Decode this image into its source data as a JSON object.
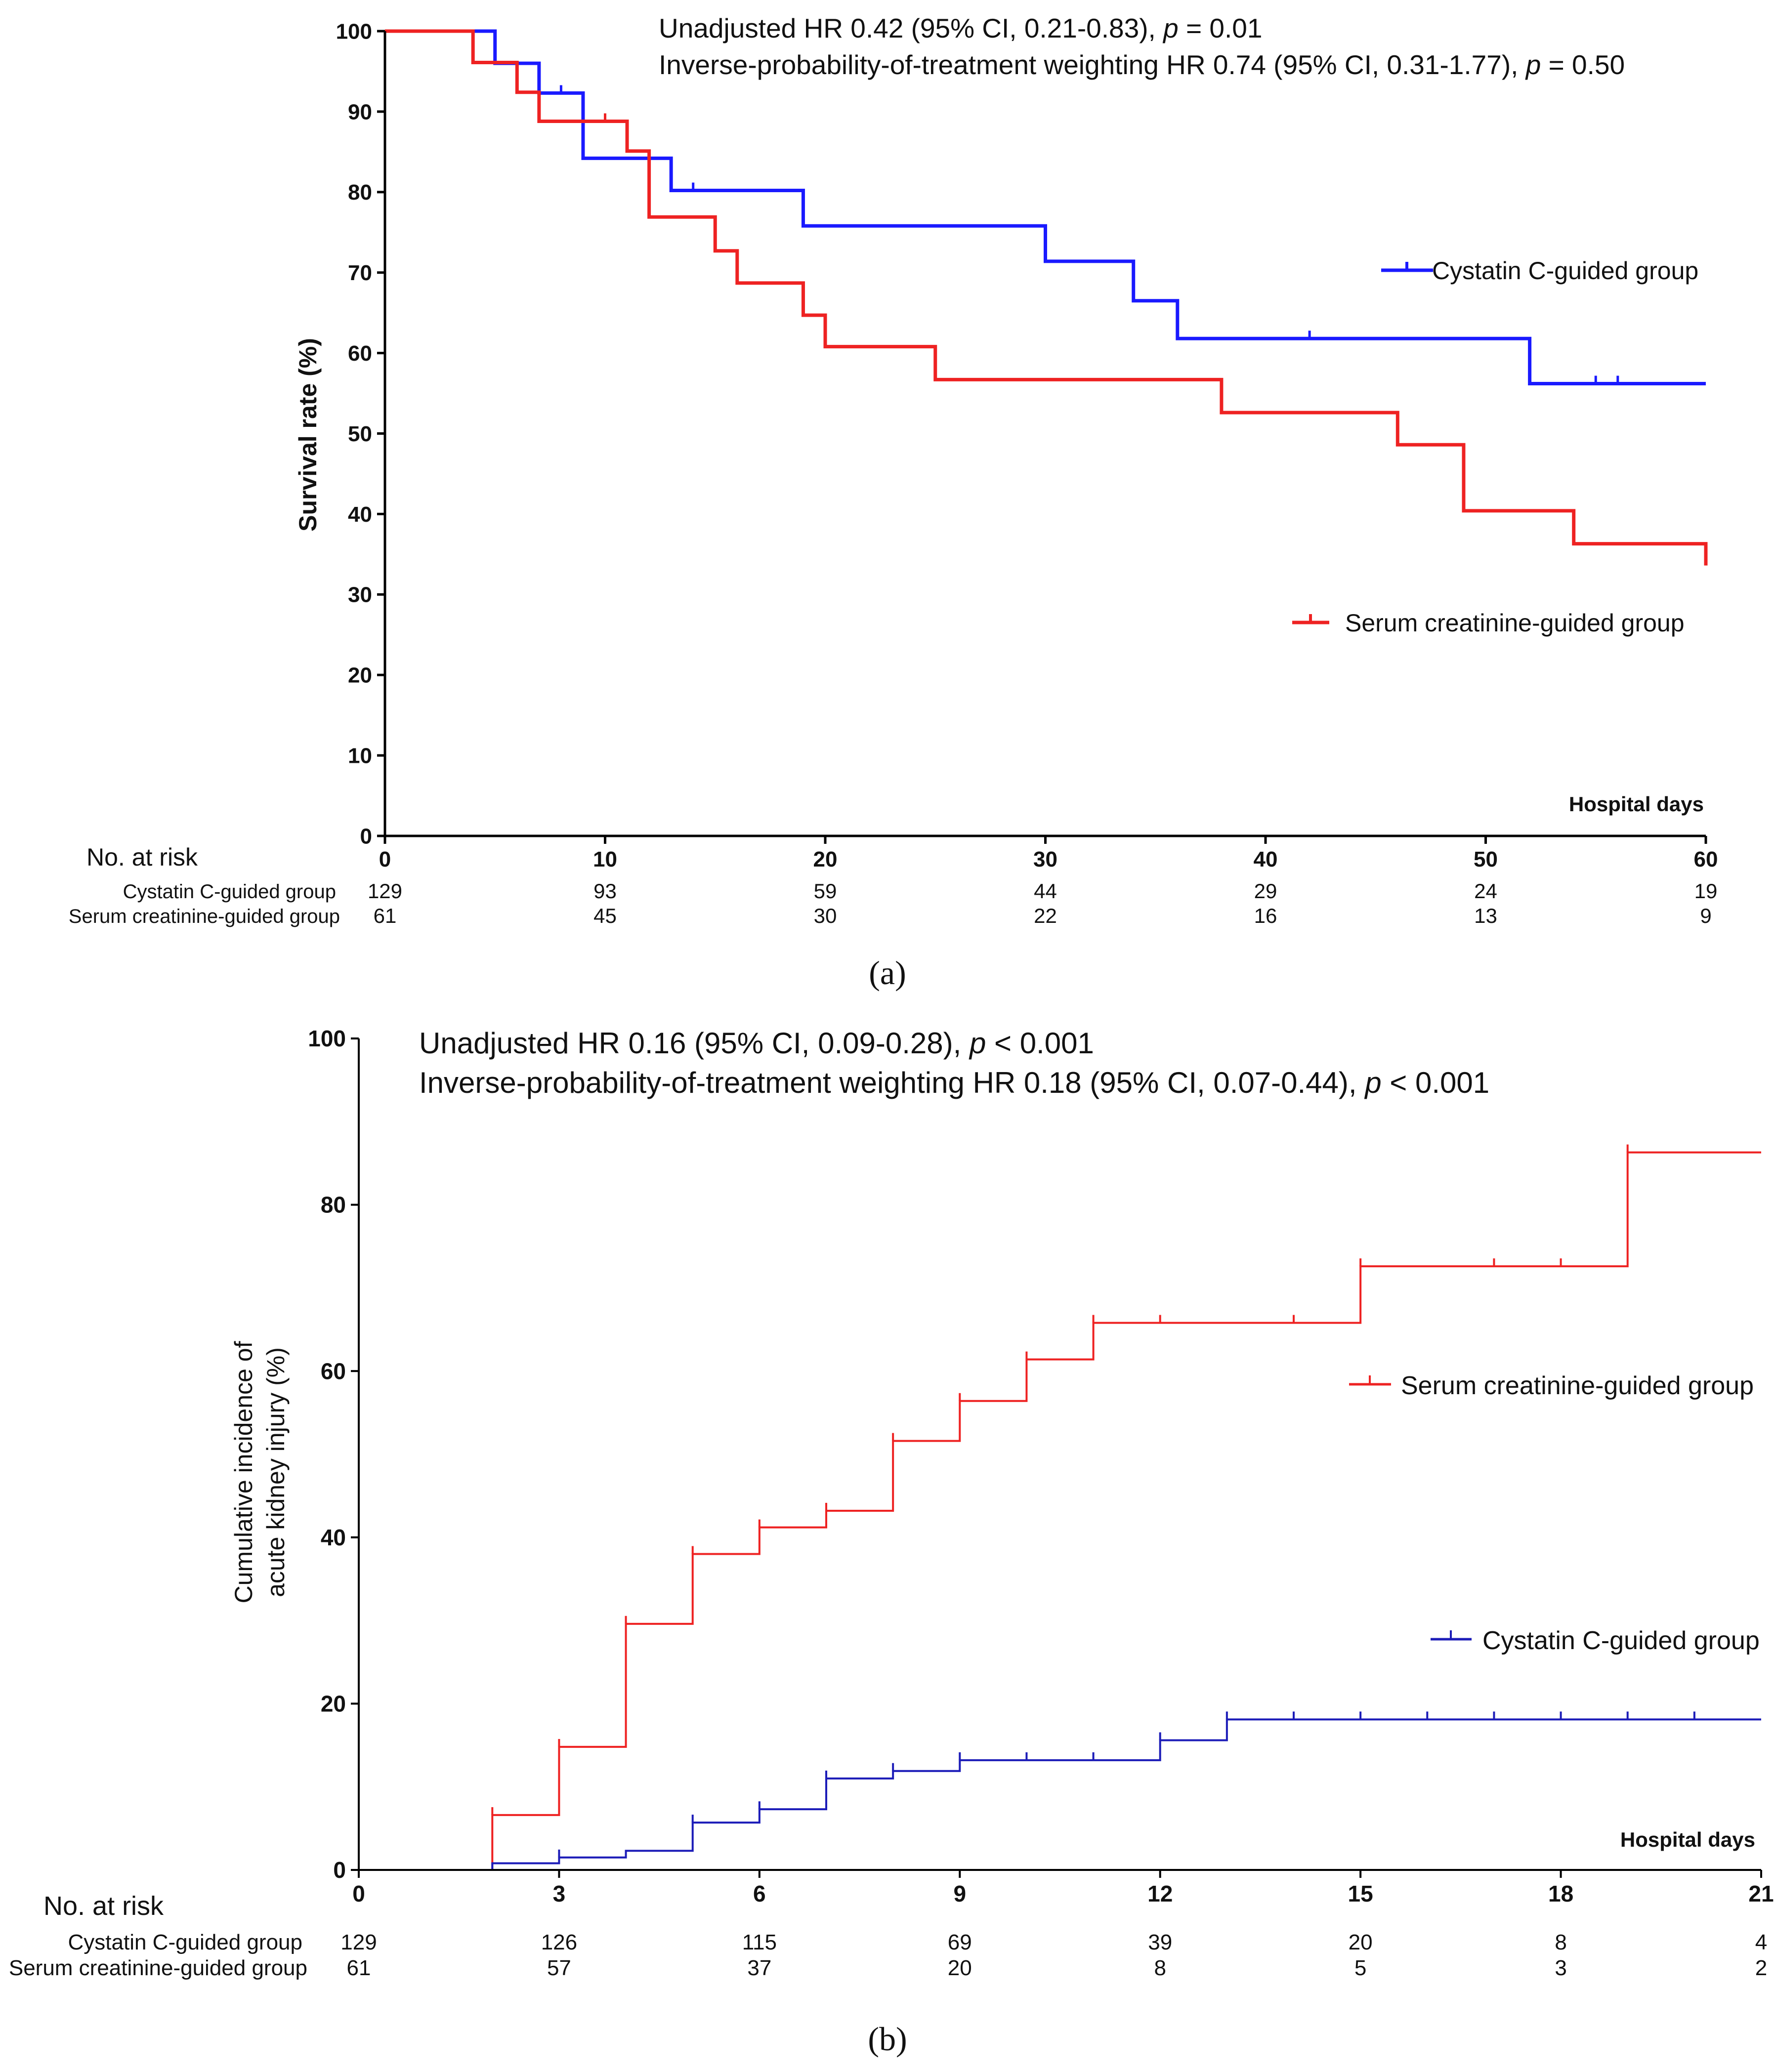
{
  "chart_data": [
    {
      "panel": "a",
      "type": "line",
      "title": "",
      "caption": "(a)",
      "ylabel": "Survival rate (%)",
      "xlabel": "Hospital days",
      "xlim": [
        0,
        60
      ],
      "ylim": [
        0,
        100
      ],
      "xticks": [
        "0",
        "10",
        "20",
        "30",
        "40",
        "50",
        "60"
      ],
      "yticks": [
        "0",
        "10",
        "20",
        "30",
        "40",
        "50",
        "60",
        "70",
        "80",
        "90",
        "100"
      ],
      "annotation_lines": [
        {
          "pre": "Unadjusted HR 0.42 (95% CI, 0.21-0.83), ",
          "p": "p",
          "post": " = 0.01"
        },
        {
          "pre": "Inverse-probability-of-treatment weighting HR 0.74 (95% CI, 0.31-1.77), ",
          "p": "p",
          "post": " = 0.50"
        }
      ],
      "grid": false,
      "series": [
        {
          "name": "Cystatin C-guided group",
          "color": "#1a1aff",
          "steps": [
            [
              0,
              100
            ],
            [
              5,
              96
            ],
            [
              7,
              92.3
            ],
            [
              9,
              84.2
            ],
            [
              13,
              80.2
            ],
            [
              19,
              75.8
            ],
            [
              30,
              71.4
            ],
            [
              34,
              66.5
            ],
            [
              36,
              61.8
            ],
            [
              52,
              56.2
            ],
            [
              60,
              56.2
            ]
          ],
          "censor": [
            [
              8,
              92.3
            ],
            [
              14,
              80.2
            ],
            [
              42,
              61.8
            ],
            [
              55,
              56.2
            ],
            [
              56,
              56.2
            ]
          ]
        },
        {
          "name": "Serum creatinine-guided group",
          "color": "#ee2222",
          "steps": [
            [
              0,
              100
            ],
            [
              4,
              96.1
            ],
            [
              6,
              92.4
            ],
            [
              7,
              88.8
            ],
            [
              11,
              85.1
            ],
            [
              12,
              76.9
            ],
            [
              15,
              72.7
            ],
            [
              16,
              68.7
            ],
            [
              19,
              64.7
            ],
            [
              20,
              60.8
            ],
            [
              25,
              56.7
            ],
            [
              38,
              52.6
            ],
            [
              46,
              48.6
            ],
            [
              49,
              40.4
            ],
            [
              54,
              36.3
            ],
            [
              60,
              33.6
            ]
          ],
          "censor": [
            [
              10,
              88.8
            ]
          ]
        }
      ],
      "risk_table": {
        "heading": "No. at risk",
        "times": [
          0,
          10,
          20,
          30,
          40,
          50,
          60
        ],
        "rows": [
          {
            "label": "Cystatin C-guided group",
            "values": [
              "129",
              "93",
              "59",
              "44",
              "29",
              "24",
              "19"
            ]
          },
          {
            "label": "Serum creatinine-guided group",
            "values": [
              "61",
              "45",
              "30",
              "22",
              "16",
              "13",
              "9"
            ]
          }
        ]
      }
    },
    {
      "panel": "b",
      "type": "line",
      "title": "",
      "caption": "(b)",
      "ylabel_lines": [
        "Cumulative incidence of",
        "acute kidney injury (%)"
      ],
      "xlabel": "Hospital days",
      "xlim": [
        0,
        21
      ],
      "ylim": [
        0,
        100
      ],
      "xticks": [
        "0",
        "3",
        "6",
        "9",
        "12",
        "15",
        "18",
        "21"
      ],
      "yticks": [
        "0",
        "20",
        "40",
        "60",
        "80",
        "100"
      ],
      "annotation_lines": [
        {
          "pre": "Unadjusted HR 0.16 (95% CI, 0.09-0.28), ",
          "p": "p",
          "post": " < 0.001"
        },
        {
          "pre": "Inverse-probability-of-treatment weighting HR 0.18 (95% CI, 0.07-0.44), ",
          "p": "p",
          "post": " < 0.001"
        }
      ],
      "grid": false,
      "series": [
        {
          "name": "Serum creatinine-guided group",
          "color": "#ee2222",
          "steps": [
            [
              0,
              0
            ],
            [
              2,
              6.6
            ],
            [
              3,
              14.8
            ],
            [
              4,
              29.6
            ],
            [
              5,
              38
            ],
            [
              6,
              41.2
            ],
            [
              7,
              43.2
            ],
            [
              8,
              51.6
            ],
            [
              9,
              56.4
            ],
            [
              10,
              61.4
            ],
            [
              11,
              65.8
            ],
            [
              15,
              72.6
            ],
            [
              19,
              86.3
            ],
            [
              21,
              86.3
            ]
          ],
          "censor": [
            [
              2,
              6.6
            ],
            [
              3,
              14.8
            ],
            [
              4,
              29.6
            ],
            [
              5,
              38
            ],
            [
              6,
              41.2
            ],
            [
              7,
              43.2
            ],
            [
              8,
              51.6
            ],
            [
              9,
              56.4
            ],
            [
              10,
              61.4
            ],
            [
              11,
              65.8
            ],
            [
              12,
              65.8
            ],
            [
              14,
              65.8
            ],
            [
              15,
              72.6
            ],
            [
              17,
              72.6
            ],
            [
              18,
              72.6
            ],
            [
              19,
              86.3
            ]
          ]
        },
        {
          "name": "Cystatin C-guided group",
          "color": "#1c1cb8",
          "steps": [
            [
              0,
              0
            ],
            [
              2,
              0.8
            ],
            [
              3,
              1.5
            ],
            [
              4,
              2.3
            ],
            [
              5,
              5.7
            ],
            [
              6,
              7.3
            ],
            [
              7,
              11
            ],
            [
              8,
              11.9
            ],
            [
              9,
              13.2
            ],
            [
              12,
              15.6
            ],
            [
              13,
              18.1
            ],
            [
              21,
              18.1
            ]
          ],
          "censor": [
            [
              3,
              1.5
            ],
            [
              5,
              5.7
            ],
            [
              6,
              7.3
            ],
            [
              7,
              11
            ],
            [
              8,
              11.9
            ],
            [
              9,
              13.2
            ],
            [
              10,
              13.2
            ],
            [
              11,
              13.2
            ],
            [
              12,
              15.6
            ],
            [
              13,
              18.1
            ],
            [
              14,
              18.1
            ],
            [
              15,
              18.1
            ],
            [
              16,
              18.1
            ],
            [
              17,
              18.1
            ],
            [
              18,
              18.1
            ],
            [
              19,
              18.1
            ],
            [
              20,
              18.1
            ]
          ]
        }
      ],
      "risk_table": {
        "heading": "No. at risk",
        "times": [
          0,
          3,
          6,
          9,
          12,
          15,
          18,
          21
        ],
        "rows": [
          {
            "label": "Cystatin C-guided group",
            "values": [
              "129",
              "126",
              "115",
              "69",
              "39",
              "20",
              "8",
              "4"
            ]
          },
          {
            "label": "Serum creatinine-guided group",
            "values": [
              "61",
              "57",
              "37",
              "20",
              "8",
              "5",
              "3",
              "2"
            ]
          }
        ]
      }
    }
  ]
}
